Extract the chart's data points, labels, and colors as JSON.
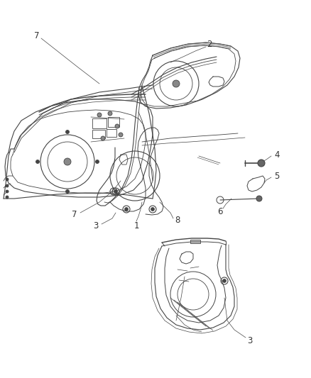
{
  "background_color": "#ffffff",
  "line_color": "#444444",
  "callout_color": "#333333",
  "fig_width": 4.38,
  "fig_height": 5.33,
  "dpi": 100
}
